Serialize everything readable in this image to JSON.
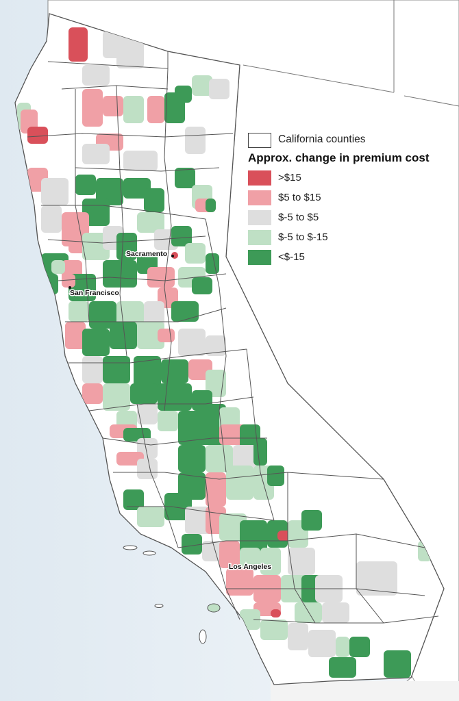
{
  "legend": {
    "counties_label": "California counties",
    "title": "Approx. change in premium cost",
    "items": [
      {
        "label": ">$15",
        "color": "#d9505a"
      },
      {
        "label": "$5 to $15",
        "color": "#f0a0a6"
      },
      {
        "label": "$-5 to $5",
        "color": "#dedede"
      },
      {
        "label": "$-5 to $-15",
        "color": "#bfe0c5"
      },
      {
        "label": "<$-15",
        "color": "#3d9a57"
      }
    ]
  },
  "cities": [
    {
      "name": "Sacramento"
    },
    {
      "name": "San Francisco"
    },
    {
      "name": "Los Angeles"
    }
  ],
  "colors": {
    "ocean": "#e6eef4",
    "land": "#ffffff",
    "border": "#555555"
  }
}
